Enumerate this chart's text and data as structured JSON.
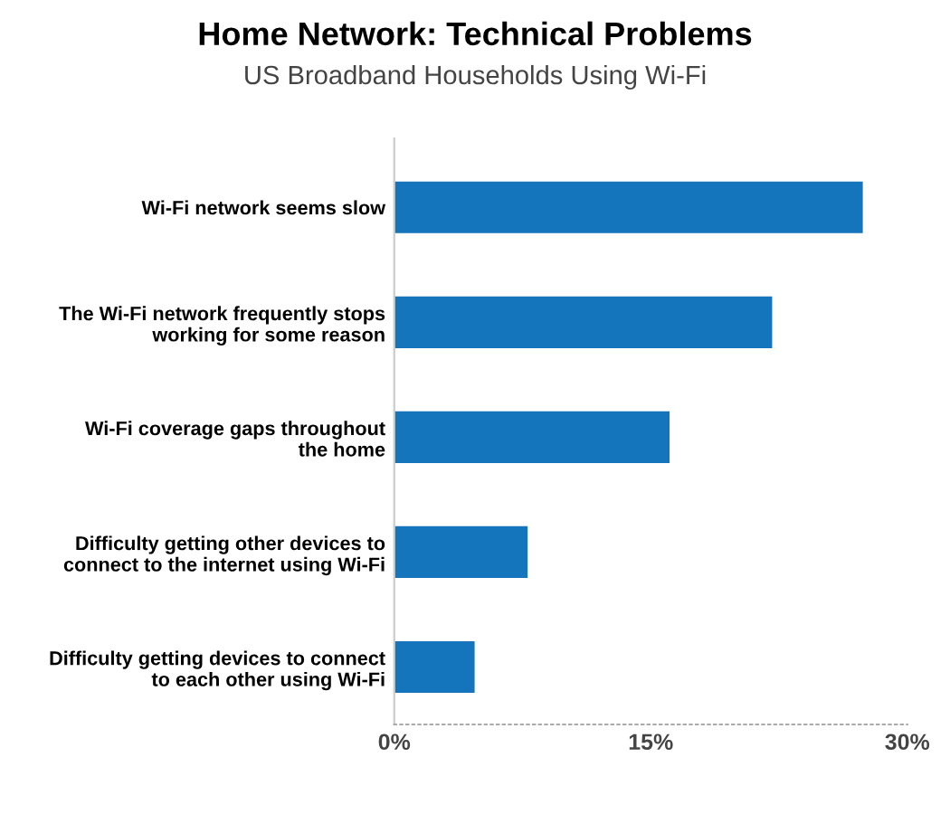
{
  "chart_data": {
    "type": "bar",
    "orientation": "horizontal",
    "title": "Home Network: Technical Problems",
    "subtitle": "US Broadband Households Using Wi-Fi",
    "categories": [
      "Wi-Fi network seems slow",
      "The Wi-Fi network frequently stops\nworking for some reason",
      "Wi-Fi coverage gaps throughout\nthe home",
      "Difficulty getting other devices to\nconnect to the internet using Wi-Fi",
      "Difficulty getting devices to connect\nto each other using Wi-Fi"
    ],
    "values": [
      27.4,
      22.1,
      16.1,
      7.8,
      4.7
    ],
    "color": "#1474bc",
    "xlim": [
      0,
      30
    ],
    "xticks": [
      {
        "value": 0,
        "label": "0%"
      },
      {
        "value": 15,
        "label": "15%"
      },
      {
        "value": 30,
        "label": "30%"
      }
    ],
    "grid": false
  }
}
